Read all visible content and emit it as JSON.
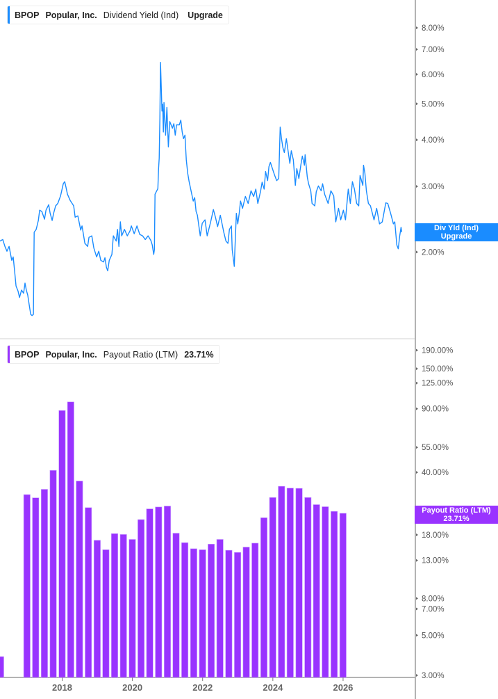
{
  "colors": {
    "yield_line": "#1a8cff",
    "payout_bars": "#9933ff",
    "axis": "#b3b3b3",
    "separator": "#e2e2e2"
  },
  "top_panel": {
    "legend": {
      "ticker": "BPOP",
      "company": "Popular, Inc.",
      "metric": "Dividend Yield (Ind)",
      "value": "Upgrade"
    },
    "badge": {
      "line1": "Div Yld (Ind)",
      "line2": "Upgrade"
    }
  },
  "bottom_panel": {
    "legend": {
      "ticker": "BPOP",
      "company": "Popular, Inc.",
      "metric": "Payout Ratio (LTM)",
      "value": "23.71%"
    },
    "badge": {
      "line1": "Payout Ratio (LTM)",
      "line2": "23.71%"
    }
  },
  "chart_data": [
    {
      "type": "line",
      "series": [
        {
          "name": "Dividend Yield (Ind)",
          "unit": "%"
        }
      ],
      "y_scale": "log",
      "ylim": [
        1.17,
        9.5
      ],
      "xlim": [
        "2016-04-20",
        "2026-06-01"
      ],
      "y_ticks": [
        8,
        7,
        6,
        5,
        4,
        3,
        2
      ],
      "y_tick_labels": [
        "8.00%",
        "7.00%",
        "6.00%",
        "5.00%",
        "4.00%",
        "3.00%",
        "2.00%"
      ],
      "grid": false,
      "points": [
        [
          "2016-04-20",
          2.14
        ],
        [
          "2016-05-15",
          2.16
        ],
        [
          "2016-06-03",
          2.07
        ],
        [
          "2016-06-21",
          2.01
        ],
        [
          "2016-07-10",
          2.07
        ],
        [
          "2016-08-03",
          1.9
        ],
        [
          "2016-08-16",
          1.94
        ],
        [
          "2016-08-28",
          1.78
        ],
        [
          "2016-09-10",
          1.62
        ],
        [
          "2016-09-28",
          1.57
        ],
        [
          "2016-10-11",
          1.51
        ],
        [
          "2016-10-29",
          1.58
        ],
        [
          "2016-11-17",
          1.55
        ],
        [
          "2016-11-29",
          1.65
        ],
        [
          "2016-12-11",
          1.58
        ],
        [
          "2016-12-24",
          1.53
        ],
        [
          "2017-01-06",
          1.44
        ],
        [
          "2017-01-19",
          1.36
        ],
        [
          "2017-01-31",
          1.35
        ],
        [
          "2017-02-12",
          1.36
        ],
        [
          "2017-02-19",
          2.26
        ],
        [
          "2017-03-09",
          2.3
        ],
        [
          "2017-03-28",
          2.43
        ],
        [
          "2017-04-09",
          2.59
        ],
        [
          "2017-04-28",
          2.57
        ],
        [
          "2017-05-22",
          2.45
        ],
        [
          "2017-06-04",
          2.59
        ],
        [
          "2017-06-28",
          2.68
        ],
        [
          "2017-07-11",
          2.54
        ],
        [
          "2017-07-29",
          2.43
        ],
        [
          "2017-08-11",
          2.54
        ],
        [
          "2017-08-29",
          2.66
        ],
        [
          "2017-09-17",
          2.7
        ],
        [
          "2017-10-12",
          2.83
        ],
        [
          "2017-11-05",
          3.05
        ],
        [
          "2017-11-18",
          3.09
        ],
        [
          "2017-11-30",
          2.98
        ],
        [
          "2017-12-12",
          2.86
        ],
        [
          "2018-01-06",
          2.75
        ],
        [
          "2018-02-06",
          2.66
        ],
        [
          "2018-02-19",
          2.48
        ],
        [
          "2018-03-15",
          2.5
        ],
        [
          "2018-04-09",
          2.29
        ],
        [
          "2018-04-21",
          2.35
        ],
        [
          "2018-05-16",
          2.11
        ],
        [
          "2018-06-10",
          2.07
        ],
        [
          "2018-06-22",
          2.19
        ],
        [
          "2018-07-17",
          2.21
        ],
        [
          "2018-08-04",
          2.05
        ],
        [
          "2018-08-29",
          1.94
        ],
        [
          "2018-09-17",
          2.01
        ],
        [
          "2018-10-05",
          1.9
        ],
        [
          "2018-10-30",
          1.88
        ],
        [
          "2018-11-11",
          1.93
        ],
        [
          "2018-11-24",
          1.82
        ],
        [
          "2018-12-06",
          1.78
        ],
        [
          "2018-12-19",
          1.9
        ],
        [
          "2019-01-12",
          1.97
        ],
        [
          "2019-01-25",
          2.21
        ],
        [
          "2019-02-19",
          2.14
        ],
        [
          "2019-03-03",
          2.3
        ],
        [
          "2019-03-15",
          2.07
        ],
        [
          "2019-03-28",
          2.41
        ],
        [
          "2019-04-09",
          2.21
        ],
        [
          "2019-05-04",
          2.3
        ],
        [
          "2019-05-29",
          2.21
        ],
        [
          "2019-06-22",
          2.28
        ],
        [
          "2019-07-04",
          2.35
        ],
        [
          "2019-07-29",
          2.24
        ],
        [
          "2019-08-23",
          2.35
        ],
        [
          "2019-09-17",
          2.23
        ],
        [
          "2019-10-12",
          2.21
        ],
        [
          "2019-11-05",
          2.16
        ],
        [
          "2019-11-30",
          2.21
        ],
        [
          "2019-12-24",
          2.15
        ],
        [
          "2020-01-06",
          2.09
        ],
        [
          "2020-01-19",
          1.97
        ],
        [
          "2020-01-25",
          2.03
        ],
        [
          "2020-01-31",
          2.86
        ],
        [
          "2020-02-25",
          2.96
        ],
        [
          "2020-03-02",
          3.32
        ],
        [
          "2020-03-08",
          3.57
        ],
        [
          "2020-03-14",
          4.58
        ],
        [
          "2020-03-20",
          6.46
        ],
        [
          "2020-03-27",
          5.44
        ],
        [
          "2020-04-02",
          4.78
        ],
        [
          "2020-04-08",
          4.99
        ],
        [
          "2020-04-14",
          4.2
        ],
        [
          "2020-04-20",
          5.04
        ],
        [
          "2020-05-04",
          4.12
        ],
        [
          "2020-05-16",
          4.89
        ],
        [
          "2020-05-29",
          3.83
        ],
        [
          "2020-06-10",
          4.48
        ],
        [
          "2020-07-04",
          4.3
        ],
        [
          "2020-07-17",
          4.42
        ],
        [
          "2020-07-29",
          4.12
        ],
        [
          "2020-08-10",
          4.39
        ],
        [
          "2020-09-04",
          4.39
        ],
        [
          "2020-09-17",
          4.52
        ],
        [
          "2020-09-29",
          4.2
        ],
        [
          "2020-10-11",
          4.03
        ],
        [
          "2020-10-24",
          4.12
        ],
        [
          "2020-11-05",
          3.54
        ],
        [
          "2020-11-18",
          3.25
        ],
        [
          "2020-11-30",
          3.09
        ],
        [
          "2020-12-24",
          2.86
        ],
        [
          "2021-01-06",
          2.74
        ],
        [
          "2021-01-19",
          2.8
        ],
        [
          "2021-01-31",
          2.57
        ],
        [
          "2021-02-12",
          2.51
        ],
        [
          "2021-02-25",
          2.35
        ],
        [
          "2021-03-09",
          2.21
        ],
        [
          "2021-03-27",
          2.39
        ],
        [
          "2021-04-21",
          2.44
        ],
        [
          "2021-05-10",
          2.21
        ],
        [
          "2021-06-10",
          2.41
        ],
        [
          "2021-07-04",
          2.6
        ],
        [
          "2021-07-23",
          2.48
        ],
        [
          "2021-08-11",
          2.34
        ],
        [
          "2021-09-04",
          2.51
        ],
        [
          "2021-10-05",
          2.26
        ],
        [
          "2021-10-24",
          2.14
        ],
        [
          "2021-11-11",
          2.11
        ],
        [
          "2021-11-24",
          2.3
        ],
        [
          "2021-12-12",
          2.35
        ],
        [
          "2021-12-19",
          2.03
        ],
        [
          "2022-01-06",
          1.83
        ],
        [
          "2022-01-12",
          2.03
        ],
        [
          "2022-01-25",
          2.54
        ],
        [
          "2022-02-06",
          2.38
        ],
        [
          "2022-02-19",
          2.54
        ],
        [
          "2022-03-03",
          2.74
        ],
        [
          "2022-03-21",
          2.62
        ],
        [
          "2022-04-15",
          2.82
        ],
        [
          "2022-05-10",
          2.7
        ],
        [
          "2022-06-04",
          2.92
        ],
        [
          "2022-06-28",
          2.82
        ],
        [
          "2022-07-17",
          2.95
        ],
        [
          "2022-08-04",
          2.7
        ],
        [
          "2022-08-29",
          2.92
        ],
        [
          "2022-09-11",
          3.08
        ],
        [
          "2022-09-29",
          2.95
        ],
        [
          "2022-10-12",
          3.29
        ],
        [
          "2022-10-30",
          3.11
        ],
        [
          "2022-11-11",
          3.39
        ],
        [
          "2022-11-24",
          3.48
        ],
        [
          "2022-12-12",
          3.35
        ],
        [
          "2023-01-01",
          3.21
        ],
        [
          "2023-01-19",
          3.11
        ],
        [
          "2023-02-06",
          3.15
        ],
        [
          "2023-02-19",
          4.33
        ],
        [
          "2023-03-03",
          4.03
        ],
        [
          "2023-03-15",
          3.81
        ],
        [
          "2023-03-28",
          3.7
        ],
        [
          "2023-04-15",
          4.03
        ],
        [
          "2023-04-28",
          3.78
        ],
        [
          "2023-05-16",
          3.46
        ],
        [
          "2023-05-29",
          3.74
        ],
        [
          "2023-06-16",
          3.54
        ],
        [
          "2023-07-04",
          3.02
        ],
        [
          "2023-07-17",
          3.35
        ],
        [
          "2023-08-04",
          3.15
        ],
        [
          "2023-08-23",
          3.44
        ],
        [
          "2023-09-04",
          3.62
        ],
        [
          "2023-09-23",
          3.42
        ],
        [
          "2023-09-29",
          3.65
        ],
        [
          "2023-10-18",
          3.18
        ],
        [
          "2023-10-30",
          3.05
        ],
        [
          "2023-11-18",
          2.92
        ],
        [
          "2023-11-30",
          2.7
        ],
        [
          "2023-12-24",
          2.66
        ],
        [
          "2024-01-06",
          2.9
        ],
        [
          "2024-01-25",
          3.01
        ],
        [
          "2024-02-19",
          2.92
        ],
        [
          "2024-03-03",
          3.05
        ],
        [
          "2024-03-21",
          2.86
        ],
        [
          "2024-04-21",
          2.7
        ],
        [
          "2024-05-16",
          2.92
        ],
        [
          "2024-06-10",
          2.83
        ],
        [
          "2024-06-28",
          2.41
        ],
        [
          "2024-07-23",
          2.62
        ],
        [
          "2024-08-11",
          2.44
        ],
        [
          "2024-09-04",
          2.59
        ],
        [
          "2024-09-23",
          2.44
        ],
        [
          "2024-10-18",
          2.95
        ],
        [
          "2024-11-05",
          2.7
        ],
        [
          "2024-11-24",
          3.09
        ],
        [
          "2024-12-12",
          2.95
        ],
        [
          "2025-01-01",
          2.7
        ],
        [
          "2025-01-19",
          2.66
        ],
        [
          "2025-01-31",
          3.21
        ],
        [
          "2025-02-25",
          3.02
        ],
        [
          "2025-03-03",
          3.42
        ],
        [
          "2025-03-15",
          3.25
        ],
        [
          "2025-03-28",
          2.92
        ],
        [
          "2025-04-15",
          2.7
        ],
        [
          "2025-05-04",
          2.66
        ],
        [
          "2025-06-04",
          2.44
        ],
        [
          "2025-06-28",
          2.62
        ],
        [
          "2025-07-23",
          2.38
        ],
        [
          "2025-08-17",
          2.41
        ],
        [
          "2025-09-17",
          2.71
        ],
        [
          "2025-10-05",
          2.7
        ],
        [
          "2025-10-30",
          2.54
        ],
        [
          "2025-11-24",
          2.38
        ],
        [
          "2025-12-06",
          2.41
        ],
        [
          "2025-12-24",
          2.09
        ],
        [
          "2026-01-06",
          2.04
        ],
        [
          "2026-01-19",
          2.21
        ],
        [
          "2026-01-31",
          2.33
        ],
        [
          "2026-02-06",
          2.26
        ]
      ]
    },
    {
      "type": "bar",
      "series": [
        {
          "name": "Payout Ratio (LTM)",
          "unit": "%"
        }
      ],
      "y_scale": "log",
      "ylim": [
        2.92,
        220
      ],
      "xlim": [
        "2016-03-25",
        "2028-01-15"
      ],
      "y_ticks": [
        190,
        150,
        125,
        90,
        55,
        40,
        18,
        13,
        8,
        7,
        5,
        3
      ],
      "y_tick_labels": [
        "190.00%",
        "150.00%",
        "125.00%",
        "90.00%",
        "55.00%",
        "40.00%",
        "18.00%",
        "13.00%",
        "8.00%",
        "7.00%",
        "5.00%",
        "3.00%"
      ],
      "x_ticks": [
        "2018-01-01",
        "2020-01-01",
        "2022-01-01",
        "2024-01-01",
        "2026-01-01"
      ],
      "x_tick_labels": [
        "2018",
        "2020",
        "2022",
        "2024",
        "2026"
      ],
      "grid": false,
      "bars": [
        [
          "2016-03-31",
          3.81
        ],
        [
          "2016-12-31",
          30.1
        ],
        [
          "2017-03-31",
          28.9
        ],
        [
          "2017-06-30",
          32.2
        ],
        [
          "2017-09-30",
          41.0
        ],
        [
          "2017-12-31",
          88.0
        ],
        [
          "2018-03-31",
          98.3
        ],
        [
          "2018-06-30",
          35.8
        ],
        [
          "2018-09-30",
          25.5
        ],
        [
          "2018-12-31",
          16.8
        ],
        [
          "2019-03-31",
          14.9
        ],
        [
          "2019-06-30",
          18.3
        ],
        [
          "2019-09-30",
          18.1
        ],
        [
          "2019-12-31",
          17.0
        ],
        [
          "2020-03-31",
          21.9
        ],
        [
          "2020-06-30",
          25.1
        ],
        [
          "2020-09-30",
          25.7
        ],
        [
          "2020-12-31",
          26.0
        ],
        [
          "2021-03-31",
          18.4
        ],
        [
          "2021-06-30",
          16.3
        ],
        [
          "2021-09-30",
          15.1
        ],
        [
          "2021-12-31",
          14.9
        ],
        [
          "2022-03-31",
          16.0
        ],
        [
          "2022-06-30",
          17.0
        ],
        [
          "2022-09-30",
          14.8
        ],
        [
          "2022-12-31",
          14.4
        ],
        [
          "2023-03-31",
          15.4
        ],
        [
          "2023-06-30",
          16.2
        ],
        [
          "2023-09-30",
          22.4
        ],
        [
          "2023-12-31",
          29.0
        ],
        [
          "2024-03-31",
          33.5
        ],
        [
          "2024-06-30",
          32.7
        ],
        [
          "2024-09-30",
          32.6
        ],
        [
          "2024-12-31",
          29.0
        ],
        [
          "2025-03-31",
          26.5
        ],
        [
          "2025-06-30",
          25.8
        ],
        [
          "2025-09-30",
          24.3
        ],
        [
          "2025-12-31",
          23.71
        ]
      ]
    }
  ]
}
